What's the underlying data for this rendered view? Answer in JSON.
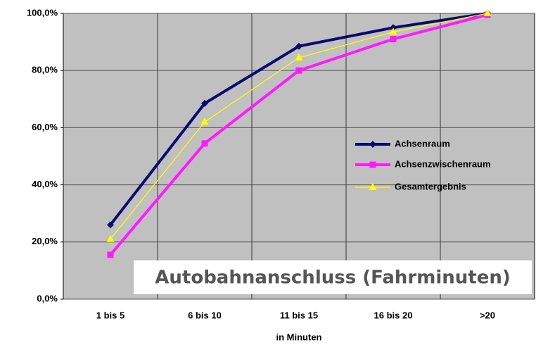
{
  "chart_data": {
    "type": "line",
    "categories": [
      "1 bis 5",
      "6 bis 10",
      "11 bis 15",
      "16 bis 20",
      ">20"
    ],
    "x_label": "in Minuten",
    "annotation": "Autobahnanschluss (Fahrminuten)",
    "series": [
      {
        "name": "Achsenraum",
        "color": "#0a0a6e",
        "marker": "diamond",
        "values": [
          26,
          68.5,
          88.5,
          95,
          100
        ]
      },
      {
        "name": "Achsenzwischenraum",
        "color": "#ff1aff",
        "marker": "square",
        "values": [
          15.5,
          54.5,
          80,
          91,
          99.5
        ]
      },
      {
        "name": "Gesamtergebnis",
        "color": "#ffff00",
        "marker": "triangle",
        "values": [
          21,
          62,
          84.5,
          93.5,
          100
        ]
      }
    ],
    "ylim": [
      0,
      100
    ],
    "yticks": [
      {
        "value": 0,
        "label": "0,0%"
      },
      {
        "value": 20,
        "label": "20,0%"
      },
      {
        "value": 40,
        "label": "40,0%"
      },
      {
        "value": 60,
        "label": "60,0%"
      },
      {
        "value": 80,
        "label": "80,0%"
      },
      {
        "value": 100,
        "label": "100,0%"
      }
    ],
    "grid": true,
    "legend": "right"
  }
}
